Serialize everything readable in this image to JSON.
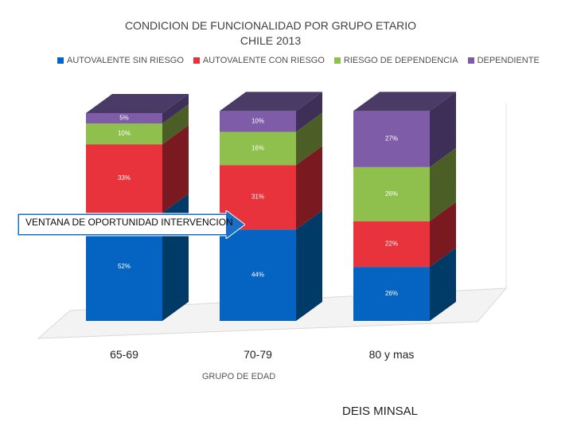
{
  "chart_data": {
    "type": "bar",
    "stacked": true,
    "title": "CONDICION DE FUNCIONALIDAD POR GRUPO ETARIO",
    "subtitle": "CHILE 2013",
    "xlabel": "GRUPO DE EDAD",
    "ylabel": "",
    "categories": [
      "65-69",
      "70-79",
      "80 y mas"
    ],
    "series": [
      {
        "name": "AUTOVALENTE SIN RIESGO",
        "values": [
          52,
          44,
          26
        ],
        "labels": [
          "52%",
          "44%",
          "26%"
        ],
        "color": "#0563c1",
        "side": "#003a66",
        "top": "#2f74b8"
      },
      {
        "name": "AUTOVALENTE CON RIESGO",
        "values": [
          33,
          31,
          22
        ],
        "labels": [
          "33%",
          "31%",
          "22%"
        ],
        "color": "#e8323c",
        "side": "#7a1a20",
        "top": "#c2323a"
      },
      {
        "name": "RIESGO DE DEPENDENCIA",
        "values": [
          10,
          16,
          26
        ],
        "labels": [
          "10%",
          "16%",
          "26%"
        ],
        "color": "#8fbf4d",
        "side": "#4a5e25",
        "top": "#6d8f3a"
      },
      {
        "name": "DEPENDIENTE",
        "values": [
          5,
          10,
          27
        ],
        "labels": [
          "5%",
          "10%",
          "27%"
        ],
        "color": "#7e5ca8",
        "side": "#3d2f58",
        "top": "#4a3a66"
      }
    ],
    "ylim": [
      0,
      100
    ],
    "legend": "top",
    "grid": false
  },
  "annotation": "VENTANA DE OPORTUNIDAD INTERVENCION",
  "source": "DEIS MINSAL",
  "colors": {
    "banner": "#1a6fc4"
  }
}
